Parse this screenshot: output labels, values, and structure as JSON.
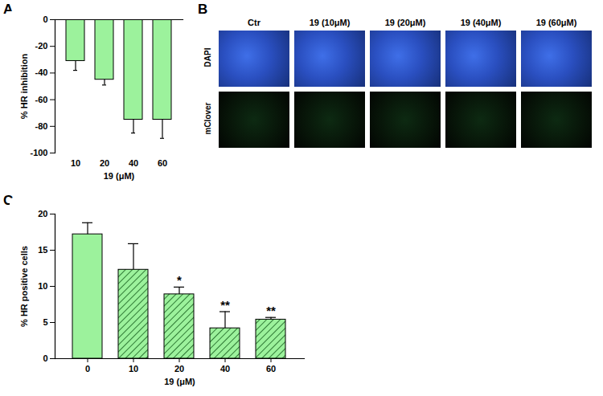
{
  "chart_data": [
    {
      "type": "bar",
      "panel_label": "A",
      "categories": [
        "10",
        "20",
        "40",
        "60"
      ],
      "values": [
        -31,
        -45,
        -75,
        -75
      ],
      "errors": [
        7,
        4,
        10,
        14
      ],
      "color": "#9cf29c",
      "x_label": "19 (μM)",
      "y_label": "% HR inhibition",
      "ylim": [
        -100,
        0
      ],
      "yticks": [
        -100,
        -80,
        -60,
        -40,
        -20,
        0
      ]
    },
    {
      "type": "bar",
      "panel_label": "C",
      "categories": [
        "0",
        "10",
        "20",
        "40",
        "60"
      ],
      "values": [
        17.2,
        12.3,
        8.9,
        4.2,
        5.4
      ],
      "errors": [
        1.6,
        3.6,
        1.0,
        2.3,
        0.3
      ],
      "color": "#9cf29c",
      "annotations": [
        {
          "category": "20",
          "text": "*"
        },
        {
          "category": "40",
          "text": "**"
        },
        {
          "category": "60",
          "text": "**"
        }
      ],
      "x_label": "19 (μM)",
      "y_label": "% HR positive cells",
      "ylim": [
        0,
        20
      ],
      "yticks": [
        0,
        5,
        10,
        15,
        20
      ]
    }
  ],
  "image_panel": {
    "panel_label": "B",
    "columns": [
      "Ctr",
      "19 (10μM)",
      "19 (20μM)",
      "19 (40μM)",
      "19 (60μM)"
    ],
    "rows": [
      "DAPI",
      "mClover"
    ]
  }
}
